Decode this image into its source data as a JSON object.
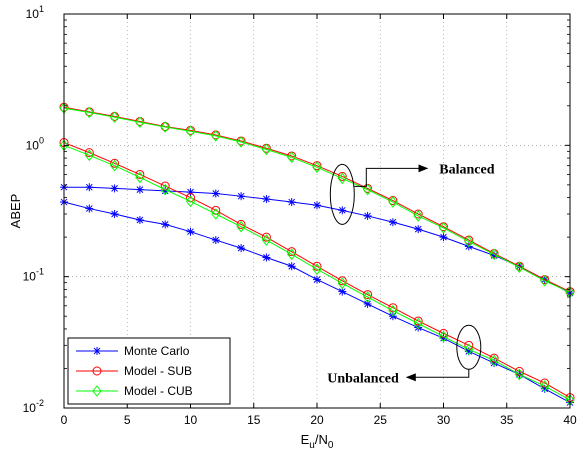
{
  "chart_data": {
    "type": "line",
    "xlabel_main": "E",
    "xlabel_sub1": "u",
    "xlabel_mid": "/N",
    "xlabel_sub2": "0",
    "ylabel": "ABEP",
    "xlim": [
      0,
      40
    ],
    "ylim": [
      0.01,
      10
    ],
    "yscale": "log",
    "grid": true,
    "legend_position": "bottom-left",
    "x_ticks": [
      0,
      5,
      10,
      15,
      20,
      25,
      30,
      35,
      40
    ],
    "y_ticks": [
      {
        "value": 10,
        "base": "10",
        "exp": "1"
      },
      {
        "value": 1,
        "base": "10",
        "exp": "0"
      },
      {
        "value": 0.1,
        "base": "10",
        "exp": "-1"
      },
      {
        "value": 0.01,
        "base": "10",
        "exp": "-2"
      }
    ],
    "x": [
      0,
      2,
      4,
      6,
      8,
      10,
      12,
      14,
      16,
      18,
      20,
      22,
      24,
      26,
      28,
      30,
      32,
      34,
      36,
      38,
      40
    ],
    "series": [
      {
        "name": "Monte Carlo",
        "color": "#0000ff",
        "marker": "star",
        "group": "balanced",
        "values": [
          0.48,
          0.48,
          0.47,
          0.46,
          0.45,
          0.44,
          0.43,
          0.41,
          0.39,
          0.37,
          0.35,
          0.32,
          0.29,
          0.26,
          0.23,
          0.2,
          0.17,
          0.145,
          0.12,
          0.095,
          0.075
        ]
      },
      {
        "name": "Model - SUB",
        "color": "#ff0000",
        "marker": "circle",
        "group": "balanced",
        "values": [
          1.95,
          1.8,
          1.66,
          1.52,
          1.39,
          1.3,
          1.2,
          1.08,
          0.95,
          0.83,
          0.7,
          0.58,
          0.47,
          0.38,
          0.3,
          0.24,
          0.19,
          0.15,
          0.12,
          0.095,
          0.077
        ]
      },
      {
        "name": "Model - CUB",
        "color": "#00ff00",
        "marker": "diamond",
        "group": "balanced",
        "values": [
          1.92,
          1.78,
          1.64,
          1.5,
          1.38,
          1.28,
          1.18,
          1.06,
          0.93,
          0.81,
          0.68,
          0.56,
          0.46,
          0.37,
          0.29,
          0.235,
          0.185,
          0.148,
          0.118,
          0.093,
          0.076
        ]
      },
      {
        "name": "Monte Carlo",
        "color": "#0000ff",
        "marker": "star",
        "group": "unbalanced",
        "values": [
          0.37,
          0.33,
          0.3,
          0.27,
          0.25,
          0.22,
          0.19,
          0.165,
          0.14,
          0.12,
          0.095,
          0.077,
          0.062,
          0.05,
          0.041,
          0.034,
          0.027,
          0.022,
          0.018,
          0.014,
          0.011
        ]
      },
      {
        "name": "Model - SUB",
        "color": "#ff0000",
        "marker": "circle",
        "group": "unbalanced",
        "values": [
          1.05,
          0.88,
          0.73,
          0.6,
          0.49,
          0.4,
          0.32,
          0.25,
          0.2,
          0.155,
          0.12,
          0.093,
          0.073,
          0.058,
          0.046,
          0.037,
          0.03,
          0.024,
          0.019,
          0.0155,
          0.012
        ]
      },
      {
        "name": "Model - CUB",
        "color": "#00ff00",
        "marker": "diamond",
        "group": "unbalanced",
        "values": [
          1.0,
          0.84,
          0.7,
          0.57,
          0.46,
          0.375,
          0.3,
          0.24,
          0.19,
          0.148,
          0.114,
          0.089,
          0.07,
          0.055,
          0.044,
          0.035,
          0.028,
          0.023,
          0.018,
          0.0147,
          0.0115
        ]
      }
    ],
    "legend": [
      "Monte Carlo",
      "Model - SUB",
      "Model - CUB"
    ],
    "annotations": [
      {
        "text": "Balanced",
        "target": "balanced"
      },
      {
        "text": "Unbalanced",
        "target": "unbalanced"
      }
    ]
  },
  "colors": {
    "monte_carlo": "#0000ff",
    "model_sub": "#ff0000",
    "model_cub": "#00ff00",
    "grid": "#888888"
  }
}
